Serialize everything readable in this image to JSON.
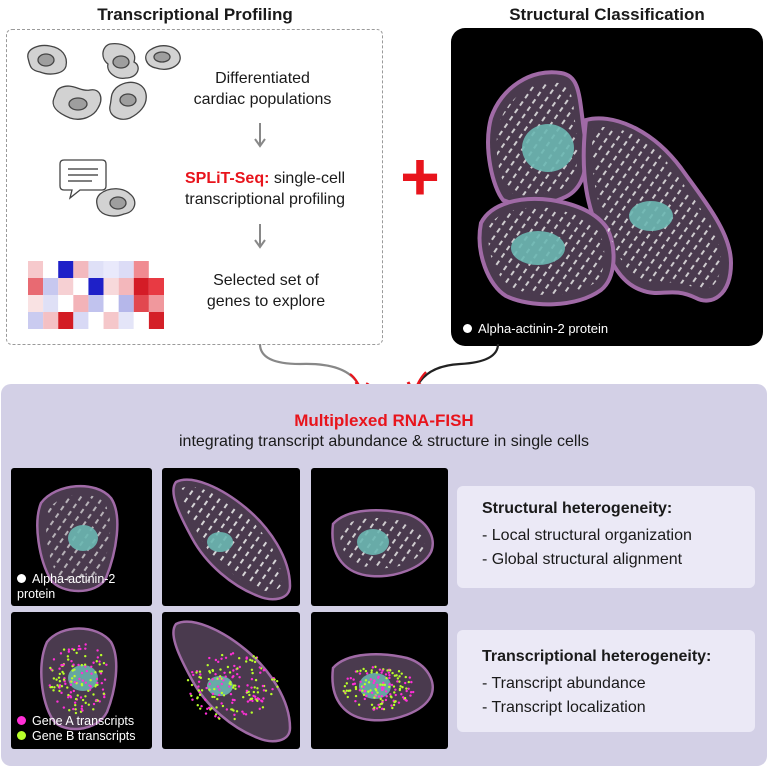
{
  "headers": {
    "left": "Transcriptional Profiling",
    "right": "Structural Classification"
  },
  "steps": {
    "step1_line1": "Differentiated",
    "step1_line2": "cardiac populations",
    "step2_highlight": "SPLiT-Seq:",
    "step2_rest": " single-cell",
    "step2_line2": "transcriptional profiling",
    "step3_line1": "Selected set of",
    "step3_line2": "genes to explore"
  },
  "plus": "+",
  "structural_legend": "Alpha-actinin-2 protein",
  "fish": {
    "title": "Multiplexed RNA-FISH",
    "subtitle": "integrating transcript abundance & structure in single cells"
  },
  "panel_legend_protein": {
    "line1": "Alpha-actinin-2",
    "line2": "protein"
  },
  "panel_legend_genes": {
    "gene_a": "Gene A transcripts",
    "gene_b": "Gene B transcripts"
  },
  "structural_heterogeneity": {
    "title": "Structural heterogeneity:",
    "items": [
      "- Local structural organization",
      "- Global structural alignment"
    ]
  },
  "transcriptional_heterogeneity": {
    "title": "Transcriptional heterogeneity:",
    "items": [
      "- Transcript abundance",
      "- Transcript localization"
    ]
  },
  "colors": {
    "accent_red": "#e8141c",
    "cell_membrane": "#a06aa6",
    "cell_fill": "#4a3a4e",
    "nucleus": "#6bb8b3",
    "gene_a": "#ff2fd6",
    "gene_b": "#b8ff2a",
    "bottom_panel": "#d3d0e6"
  },
  "heatmap_colors": [
    [
      "#f6c9cc",
      "#ffffff",
      "#1e20c8",
      "#f3b9be",
      "#dfe0f7",
      "#e9e9fb",
      "#dcdcf6",
      "#f08b91",
      "#ffffff"
    ],
    [
      "#e86a72",
      "#c7c8ef",
      "#f6d0d3",
      "#ffffff",
      "#1e20c8",
      "#f7d9db",
      "#f3b7bb",
      "#d41c26",
      "#e83a43"
    ],
    [
      "#f9e2e3",
      "#dfe0f6",
      "#ffffff",
      "#f3b3b8",
      "#c1c3ee",
      "#ffffff",
      "#b5b7ea",
      "#e2484f",
      "#f0989d"
    ],
    [
      "#cacbf0",
      "#f4c0c4",
      "#d31c24",
      "#d8d9f5",
      "#ffffff",
      "#f5c7ca",
      "#e4e5f8",
      "#ffffff",
      "#d42028"
    ]
  ]
}
